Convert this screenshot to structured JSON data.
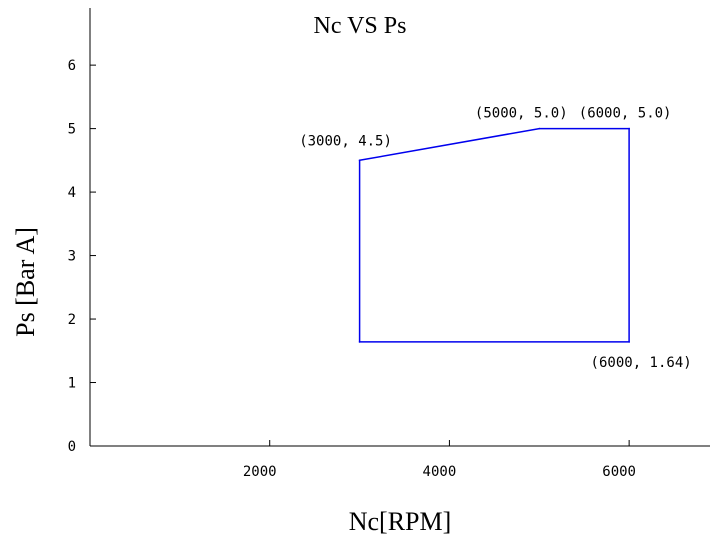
{
  "chart_data": {
    "type": "line",
    "title": "Nc VS Ps",
    "xlabel": "Nc[RPM]",
    "ylabel": "Ps [Bar A]",
    "xlim": [
      0,
      6900
    ],
    "ylim": [
      0,
      6.9
    ],
    "xticks": [
      2000,
      4000,
      6000
    ],
    "xtick_labels": [
      "2000",
      "4000",
      "6000"
    ],
    "yticks": [
      0,
      1,
      2,
      3,
      4,
      5,
      6
    ],
    "ytick_labels": [
      "0",
      "1",
      "2",
      "3",
      "4",
      "5",
      "6"
    ],
    "grid": false,
    "series": [
      {
        "color": "#0000ee",
        "closed": true,
        "x": [
          3000,
          5000,
          6000,
          6000,
          3000
        ],
        "y": [
          4.5,
          5.0,
          5.0,
          1.64,
          1.64
        ]
      }
    ],
    "annotations": [
      {
        "text": "(3000, 4.5)",
        "x": 3000,
        "y": 4.5
      },
      {
        "text": "(5000, 5.0)",
        "x": 5000,
        "y": 5.0
      },
      {
        "text": "(6000, 5.0)",
        "x": 6000,
        "y": 5.0
      },
      {
        "text": "(6000, 1.64)",
        "x": 6000,
        "y": 1.64
      }
    ]
  }
}
